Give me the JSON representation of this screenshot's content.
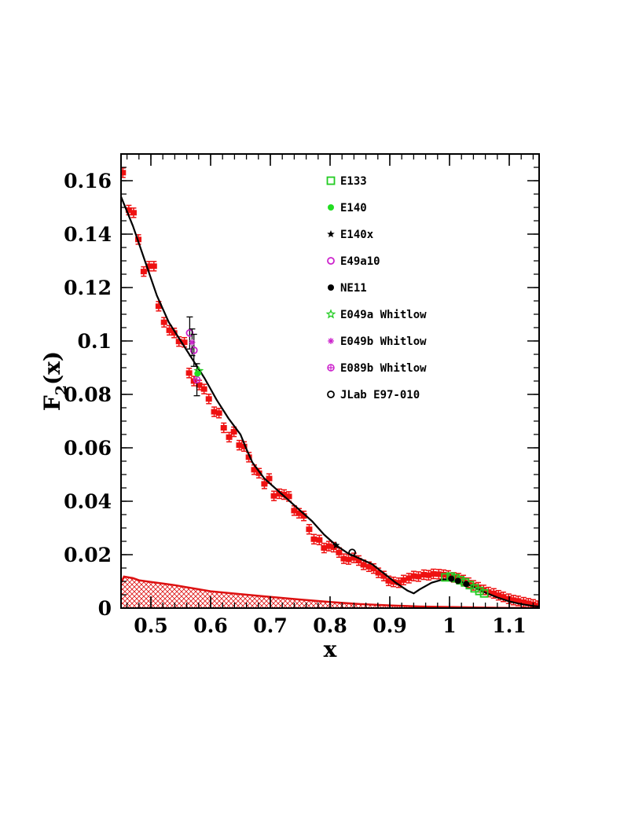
{
  "chart_data": {
    "type": "scatter",
    "title": "",
    "xlabel": "x",
    "ylabel": "F",
    "ylabel_sub": "2",
    "ylabel_suffix": "(x)",
    "xlim": [
      0.45,
      1.15
    ],
    "ylim": [
      0,
      0.17
    ],
    "grid": false,
    "legend_position": "top-right",
    "x_ticks": [
      {
        "value": 0.5,
        "label": "0.5"
      },
      {
        "value": 0.6,
        "label": "0.6"
      },
      {
        "value": 0.7,
        "label": "0.7"
      },
      {
        "value": 0.8,
        "label": "0.8"
      },
      {
        "value": 0.9,
        "label": "0.9"
      },
      {
        "value": 1.0,
        "label": "1"
      },
      {
        "value": 1.1,
        "label": "1.1"
      }
    ],
    "y_ticks": [
      {
        "value": 0,
        "label": "0"
      },
      {
        "value": 0.02,
        "label": "0.02"
      },
      {
        "value": 0.04,
        "label": "0.04"
      },
      {
        "value": 0.06,
        "label": "0.06"
      },
      {
        "value": 0.08,
        "label": "0.08"
      },
      {
        "value": 0.1,
        "label": "0.1"
      },
      {
        "value": 0.12,
        "label": "0.12"
      },
      {
        "value": 0.14,
        "label": "0.14"
      },
      {
        "value": 0.16,
        "label": "0.16"
      }
    ],
    "legend": [
      {
        "label": "E133",
        "marker": "open-square",
        "color": "#22cc22"
      },
      {
        "label": "E140",
        "marker": "filled-circle",
        "color": "#22dd22"
      },
      {
        "label": "E140x",
        "marker": "star",
        "color": "#000000"
      },
      {
        "label": "E49a10",
        "marker": "open-circle",
        "color": "#cc22cc"
      },
      {
        "label": "NE11",
        "marker": "filled-circle",
        "color": "#000000"
      },
      {
        "label": "E049a Whitlow",
        "marker": "open-star",
        "color": "#22cc22"
      },
      {
        "label": "E049b Whitlow",
        "marker": "asterisk",
        "color": "#cc22cc"
      },
      {
        "label": "E089b Whitlow",
        "marker": "open-cross",
        "color": "#cc22cc"
      },
      {
        "label": "JLab E97-010",
        "marker": "open-circle",
        "color": "#000000"
      }
    ],
    "main_data": {
      "color": "#ee1111",
      "x": [
        0.453,
        0.463,
        0.471,
        0.479,
        0.488,
        0.497,
        0.505,
        0.513,
        0.522,
        0.531,
        0.539,
        0.547,
        0.556,
        0.564,
        0.572,
        0.581,
        0.589,
        0.597,
        0.606,
        0.614,
        0.622,
        0.631,
        0.639,
        0.648,
        0.656,
        0.664,
        0.673,
        0.681,
        0.69,
        0.698,
        0.706,
        0.715,
        0.723,
        0.731,
        0.74,
        0.748,
        0.756,
        0.765,
        0.773,
        0.782,
        0.79,
        0.798,
        0.806,
        0.815,
        0.823,
        0.831,
        0.84,
        0.848,
        0.856,
        0.865,
        0.873,
        0.881,
        0.89,
        0.898,
        0.906,
        0.915,
        0.923,
        0.932,
        0.94,
        0.948,
        0.957,
        0.965,
        0.973,
        0.982,
        0.99,
        0.998,
        1.007,
        1.015,
        1.023,
        1.032,
        1.04,
        1.048,
        1.057,
        1.065,
        1.074,
        1.082,
        1.09,
        1.099,
        1.107,
        1.115,
        1.124,
        1.132,
        1.14,
        1.148
      ],
      "y": [
        0.163,
        0.149,
        0.148,
        0.138,
        0.126,
        0.128,
        0.128,
        0.113,
        0.107,
        0.104,
        0.103,
        0.0998,
        0.0995,
        0.088,
        0.085,
        0.0835,
        0.082,
        0.0783,
        0.0735,
        0.073,
        0.0675,
        0.064,
        0.066,
        0.061,
        0.0605,
        0.0565,
        0.0518,
        0.0505,
        0.0465,
        0.0485,
        0.042,
        0.0428,
        0.0425,
        0.0418,
        0.0365,
        0.0355,
        0.0345,
        0.0295,
        0.0258,
        0.0255,
        0.0225,
        0.0232,
        0.0228,
        0.0208,
        0.0185,
        0.0182,
        0.0188,
        0.0178,
        0.0162,
        0.0155,
        0.0148,
        0.0132,
        0.012,
        0.0102,
        0.0098,
        0.0095,
        0.0105,
        0.0112,
        0.012,
        0.0118,
        0.0125,
        0.0123,
        0.0128,
        0.0127,
        0.0125,
        0.0122,
        0.0115,
        0.0112,
        0.0105,
        0.0095,
        0.0085,
        0.0078,
        0.0068,
        0.006,
        0.0055,
        0.0048,
        0.0042,
        0.0035,
        0.003,
        0.0027,
        0.0022,
        0.0018,
        0.0014,
        0.0009
      ]
    },
    "curve": {
      "color": "#000000",
      "x": [
        0.45,
        0.47,
        0.49,
        0.51,
        0.53,
        0.55,
        0.57,
        0.59,
        0.61,
        0.63,
        0.64,
        0.65,
        0.66,
        0.67,
        0.69,
        0.71,
        0.73,
        0.75,
        0.77,
        0.79,
        0.81,
        0.83,
        0.85,
        0.87,
        0.89,
        0.91,
        0.93,
        0.94,
        0.95,
        0.97,
        0.99,
        1.0,
        1.02,
        1.04,
        1.06,
        1.08,
        1.1,
        1.12,
        1.14,
        1.15
      ],
      "y": [
        0.154,
        0.143,
        0.13,
        0.117,
        0.107,
        0.1,
        0.093,
        0.086,
        0.078,
        0.071,
        0.068,
        0.065,
        0.0595,
        0.0545,
        0.0485,
        0.0445,
        0.0405,
        0.0365,
        0.0325,
        0.0275,
        0.0235,
        0.0205,
        0.0185,
        0.0165,
        0.013,
        0.0095,
        0.0065,
        0.0055,
        0.007,
        0.0095,
        0.0108,
        0.0108,
        0.0098,
        0.008,
        0.0058,
        0.004,
        0.0025,
        0.0015,
        0.0008,
        0.0006
      ]
    },
    "band": {
      "color": "#dd1111",
      "x": [
        0.45,
        0.455,
        0.47,
        0.48,
        0.5,
        0.52,
        0.54,
        0.56,
        0.6,
        0.65,
        0.7,
        0.75,
        0.8,
        0.85,
        0.9,
        0.95,
        1.0,
        1.05,
        1.1,
        1.15
      ],
      "y": [
        0.0095,
        0.0118,
        0.0112,
        0.0104,
        0.0098,
        0.0092,
        0.0086,
        0.0078,
        0.0063,
        0.0052,
        0.0042,
        0.0032,
        0.0023,
        0.0015,
        0.001,
        0.0006,
        0.0004,
        0.0002,
        0.0001,
        0.0001
      ]
    },
    "series_points": [
      {
        "label": "E49a10",
        "marker": "open-circle",
        "color": "#cc22cc",
        "points": [
          {
            "x": 0.565,
            "y": 0.103,
            "err": 0.006
          },
          {
            "x": 0.572,
            "y": 0.0965,
            "err": 0.006
          }
        ]
      },
      {
        "label": "E049b Whitlow",
        "marker": "asterisk",
        "color": "#cc22cc",
        "points": [
          {
            "x": 0.569,
            "y": 0.0995,
            "err": 0.005
          }
        ]
      },
      {
        "label": "E089b Whitlow",
        "marker": "open-cross",
        "color": "#cc22cc",
        "points": [
          {
            "x": 0.577,
            "y": 0.0855,
            "err": 0.006
          }
        ]
      },
      {
        "label": "E049a Whitlow",
        "marker": "open-star",
        "color": "#22cc22",
        "points": [
          {
            "x": 0.58,
            "y": 0.0888,
            "err": 0
          }
        ]
      },
      {
        "label": "E140",
        "marker": "filled-circle",
        "color": "#22dd22",
        "points": [
          {
            "x": 0.578,
            "y": 0.0878,
            "err": 0
          }
        ]
      },
      {
        "label": "E140x",
        "marker": "star",
        "color": "#000000",
        "points": [
          {
            "x": 0.81,
            "y": 0.0235,
            "err": 0
          }
        ]
      },
      {
        "label": "JLab E97-010",
        "marker": "open-circle",
        "color": "#000000",
        "points": [
          {
            "x": 0.837,
            "y": 0.0208,
            "err": 0
          }
        ]
      },
      {
        "label": "E133",
        "marker": "open-square",
        "color": "#22cc22",
        "points": [
          {
            "x": 0.993,
            "y": 0.0115,
            "err": 0
          },
          {
            "x": 1.002,
            "y": 0.0118,
            "err": 0
          },
          {
            "x": 1.01,
            "y": 0.0112,
            "err": 0
          },
          {
            "x": 1.018,
            "y": 0.0104,
            "err": 0
          },
          {
            "x": 1.026,
            "y": 0.0096,
            "err": 0
          },
          {
            "x": 1.034,
            "y": 0.0086,
            "err": 0
          },
          {
            "x": 1.042,
            "y": 0.0074,
            "err": 0
          },
          {
            "x": 1.05,
            "y": 0.0064,
            "err": 0
          },
          {
            "x": 1.058,
            "y": 0.0055,
            "err": 0
          }
        ]
      },
      {
        "label": "NE11",
        "marker": "filled-circle",
        "color": "#000000",
        "points": [
          {
            "x": 1.003,
            "y": 0.011,
            "err": 0
          },
          {
            "x": 1.014,
            "y": 0.0102,
            "err": 0
          },
          {
            "x": 1.028,
            "y": 0.009,
            "err": 0
          }
        ]
      }
    ]
  }
}
